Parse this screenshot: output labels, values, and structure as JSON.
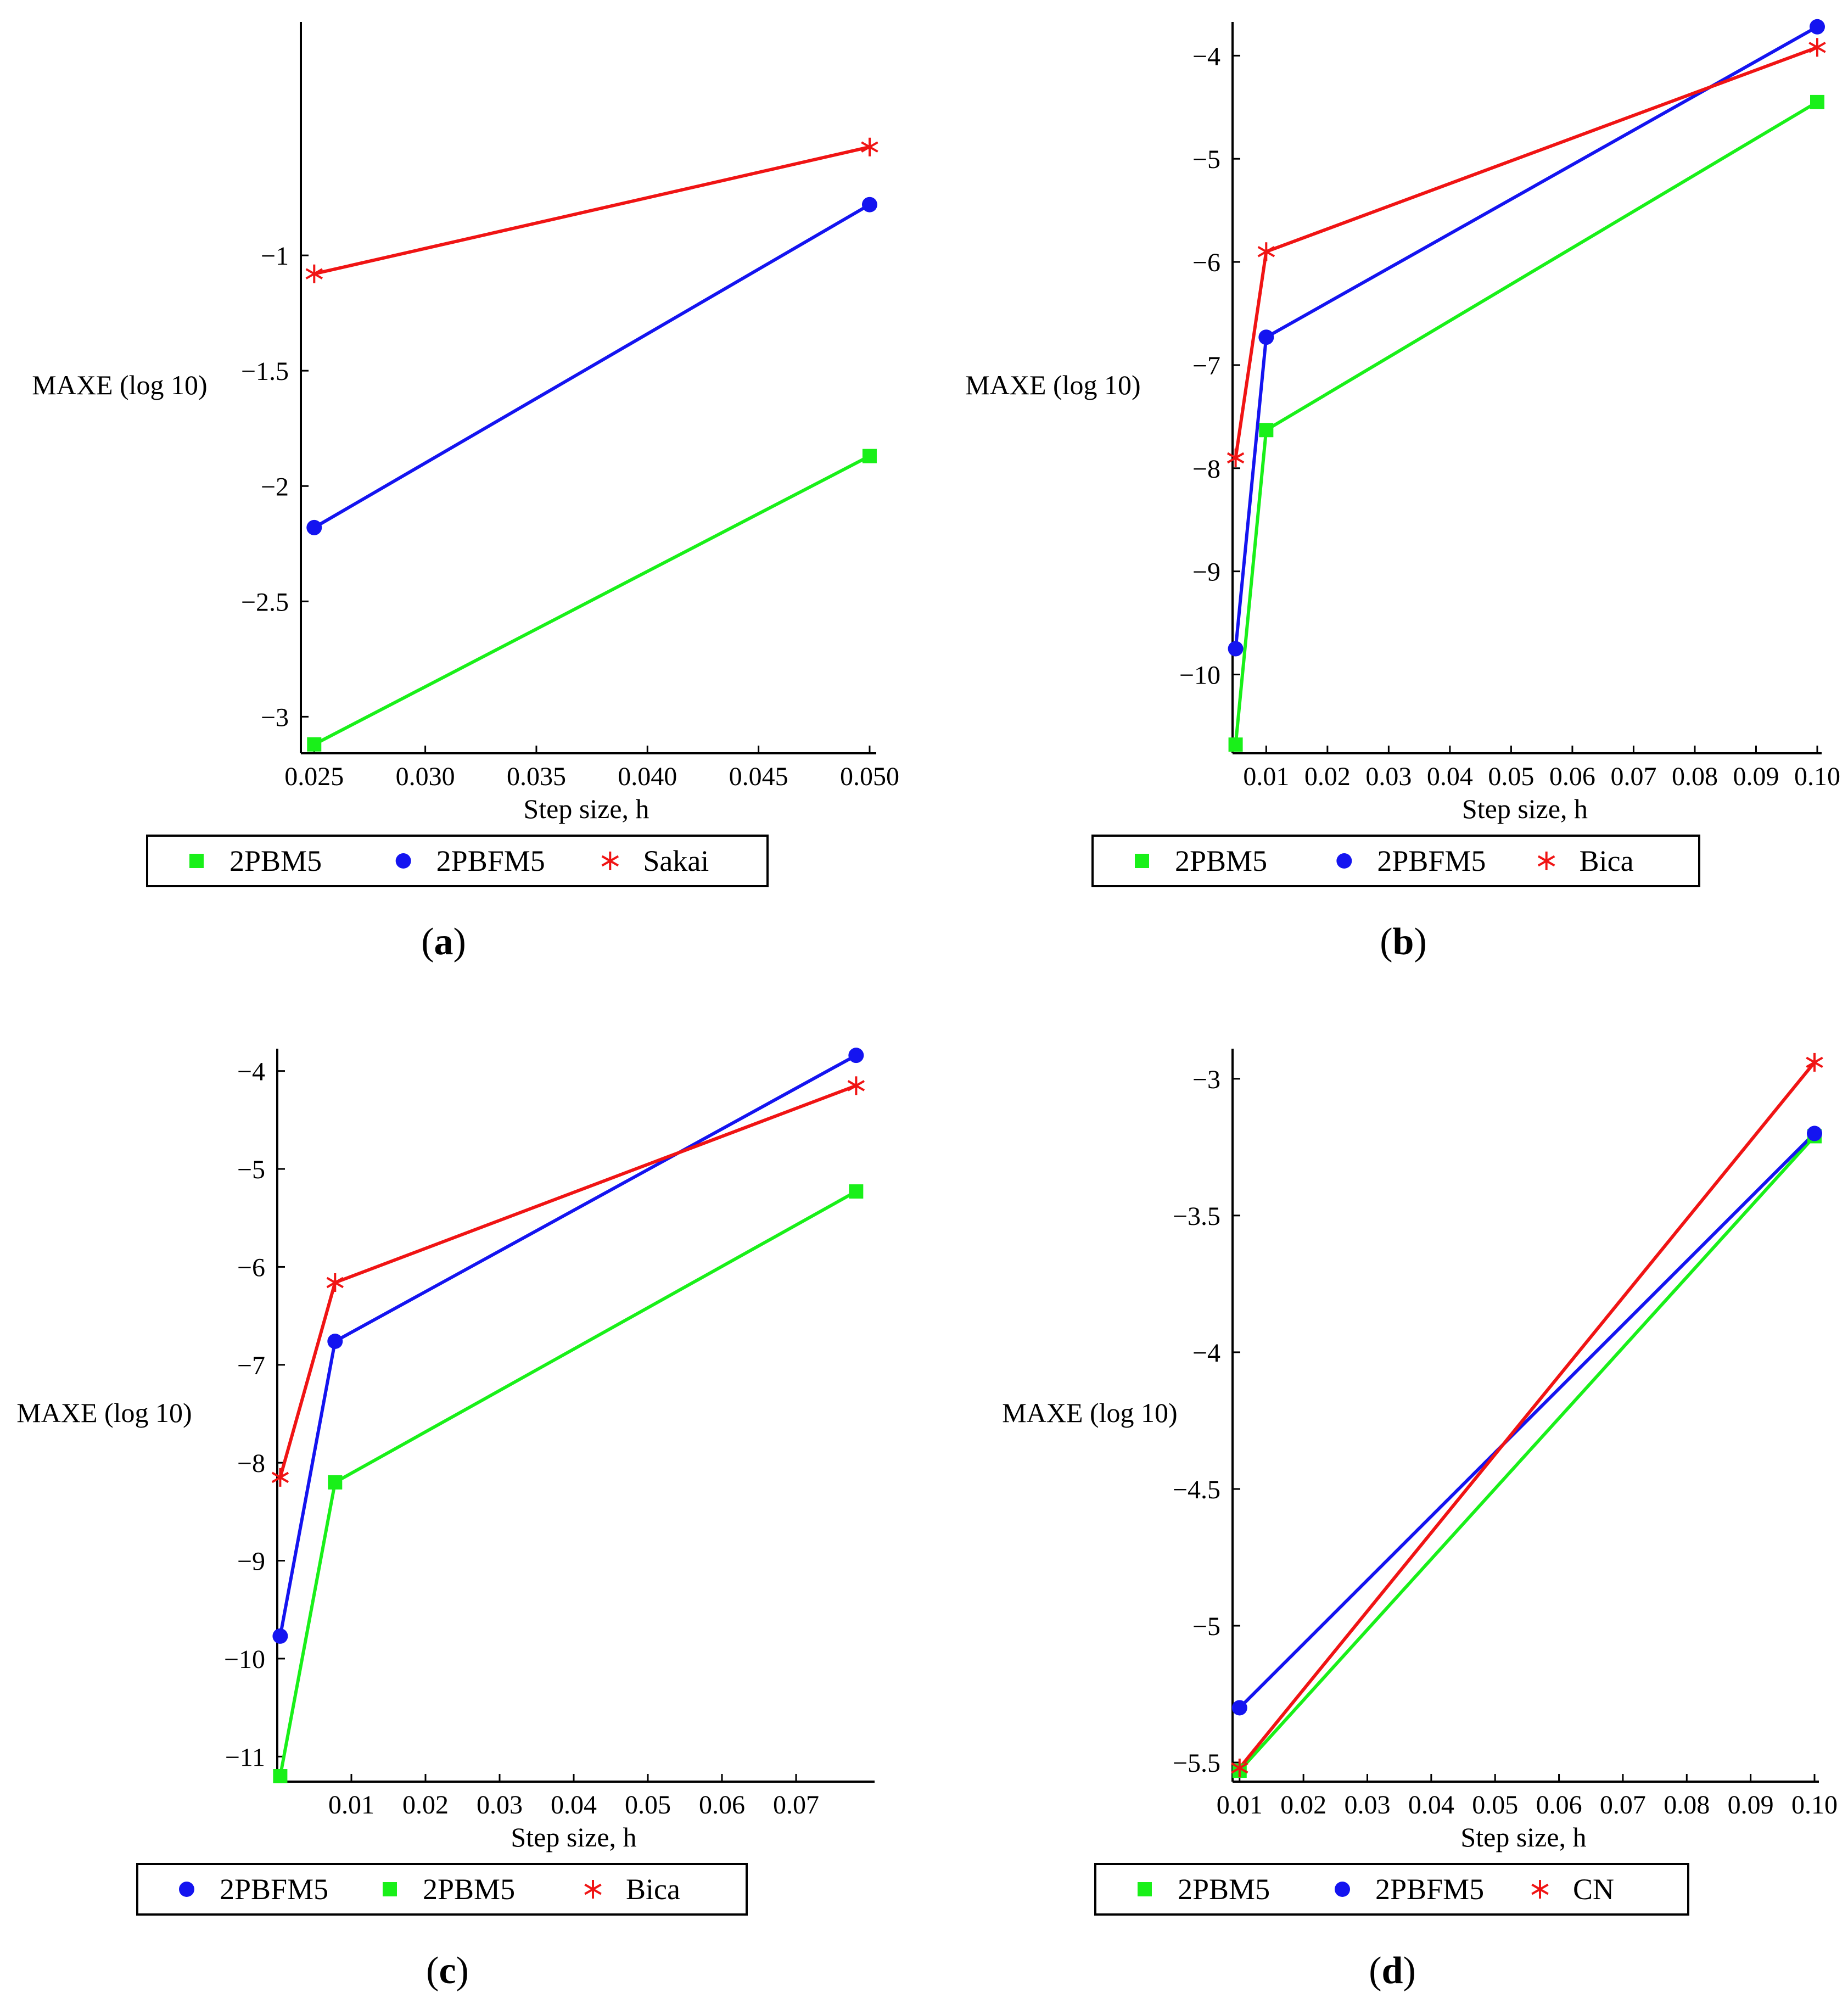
{
  "colors": {
    "green": "#19f019",
    "blue": "#1414f0",
    "red": "#f01414",
    "axis": "#000000"
  },
  "chart_data": [
    {
      "id": "a",
      "type": "line",
      "caption": "(a)",
      "caption_letter": "a",
      "xlabel": "Step size, h",
      "ylabel": "MAXE (log 10)",
      "xlim": [
        0.0244,
        0.0501
      ],
      "ylim": [
        -3.13,
        0.0
      ],
      "xticks": [
        0.025,
        0.03,
        0.035,
        0.04,
        0.045,
        0.05
      ],
      "xtick_labels": [
        "0.025",
        "0.030",
        "0.035",
        "0.040",
        "0.045",
        "0.050"
      ],
      "yticks": [
        -1,
        -1.5,
        -2,
        -2.5,
        -3
      ],
      "ytick_labels": [
        "-1",
        "-1.5",
        "-2",
        "-2.5",
        "-3"
      ],
      "legend": [
        "2PBM5",
        "2PBFM5",
        "Sakai"
      ],
      "series": [
        {
          "name": "2PBM5",
          "marker": "square",
          "color": "green",
          "x": [
            0.025,
            0.05
          ],
          "y": [
            -3.12,
            -1.87
          ]
        },
        {
          "name": "2PBFM5",
          "marker": "circle",
          "color": "blue",
          "x": [
            0.025,
            0.05
          ],
          "y": [
            -2.18,
            -0.78
          ]
        },
        {
          "name": "Sakai",
          "marker": "star",
          "color": "red",
          "x": [
            0.025,
            0.05
          ],
          "y": [
            -1.08,
            -0.53
          ]
        }
      ]
    },
    {
      "id": "b",
      "type": "line",
      "caption": "(b)",
      "caption_letter": "b",
      "xlabel": "Step size, h",
      "ylabel": "MAXE (log 10)",
      "xlim": [
        0.0045,
        0.1
      ],
      "ylim": [
        -10.7,
        -3.7
      ],
      "xticks": [
        0.01,
        0.02,
        0.03,
        0.04,
        0.05,
        0.06,
        0.07,
        0.08,
        0.09,
        0.1
      ],
      "xtick_labels": [
        "0.01",
        "0.02",
        "0.03",
        "0.04",
        "0.05",
        "0.06",
        "0.07",
        "0.08",
        "0.09",
        "0.10"
      ],
      "yticks": [
        -4,
        -5,
        -6,
        -7,
        -8,
        -9,
        -10
      ],
      "ytick_labels": [
        "-4",
        "-5",
        "-6",
        "-7",
        "-8",
        "-9",
        "-10"
      ],
      "legend": [
        "2PBM5",
        "2PBFM5",
        "Bica"
      ],
      "series": [
        {
          "name": "2PBM5",
          "marker": "square",
          "color": "green",
          "x": [
            0.005,
            0.01,
            0.1
          ],
          "y": [
            -10.68,
            -7.63,
            -4.45
          ]
        },
        {
          "name": "2PBFM5",
          "marker": "circle",
          "color": "blue",
          "x": [
            0.005,
            0.01,
            0.1
          ],
          "y": [
            -9.75,
            -6.73,
            -3.72
          ]
        },
        {
          "name": "Bica",
          "marker": "star",
          "color": "red",
          "x": [
            0.005,
            0.01,
            0.1
          ],
          "y": [
            -7.9,
            -5.9,
            -3.92
          ]
        }
      ]
    },
    {
      "id": "c",
      "type": "line",
      "caption": "(c)",
      "caption_letter": "c",
      "xlabel": "Step size, h",
      "ylabel": "MAXE (log 10)",
      "xlim": [
        0.0,
        0.08
      ],
      "ylim": [
        -11.2,
        -3.8
      ],
      "xticks": [
        0.01,
        0.02,
        0.03,
        0.04,
        0.05,
        0.06,
        0.07
      ],
      "xtick_labels": [
        "0.01",
        "0.02",
        "0.03",
        "0.04",
        "0.05",
        "0.06",
        "0.07"
      ],
      "yticks": [
        -4,
        -5,
        -6,
        -7,
        -8,
        -9,
        -10,
        -11
      ],
      "ytick_labels": [
        "-4",
        "-5",
        "-6",
        "-7",
        "-8",
        "-9",
        "-10",
        "-11"
      ],
      "legend": [
        "2PBFM5",
        "2PBM5",
        "Bica"
      ],
      "series": [
        {
          "name": "2PBFM5",
          "marker": "circle",
          "color": "blue",
          "x": [
            0.0004,
            0.0078,
            0.0781
          ],
          "y": [
            -9.77,
            -6.76,
            -3.84
          ]
        },
        {
          "name": "2PBM5",
          "marker": "square",
          "color": "green",
          "x": [
            0.0004,
            0.0078,
            0.0781
          ],
          "y": [
            -11.2,
            -8.2,
            -5.23
          ]
        },
        {
          "name": "Bica",
          "marker": "star",
          "color": "red",
          "x": [
            0.0004,
            0.0078,
            0.0781
          ],
          "y": [
            -8.15,
            -6.16,
            -4.15
          ]
        }
      ]
    },
    {
      "id": "d",
      "type": "line",
      "caption": "(d)",
      "caption_letter": "d",
      "xlabel": "Step size, h",
      "ylabel": "MAXE (log 10)",
      "xlim": [
        0.0089,
        0.1
      ],
      "ylim": [
        -5.55,
        -2.9
      ],
      "xticks": [
        0.01,
        0.02,
        0.03,
        0.04,
        0.05,
        0.06,
        0.07,
        0.08,
        0.09,
        0.1
      ],
      "xtick_labels": [
        "0.01",
        "0.02",
        "0.03",
        "0.04",
        "0.05",
        "0.06",
        "0.07",
        "0.08",
        "0.09",
        "0.10"
      ],
      "yticks": [
        -3,
        -3.5,
        -4,
        -4.5,
        -5,
        -5.5
      ],
      "ytick_labels": [
        "-3",
        "-3.5",
        "-4",
        "-4.5",
        "-5",
        "-5.5"
      ],
      "legend": [
        "2PBM5",
        "2PBFM5",
        "CN"
      ],
      "series": [
        {
          "name": "2PBM5",
          "marker": "square",
          "color": "green",
          "x": [
            0.01,
            0.1
          ],
          "y": [
            -5.53,
            -3.21
          ]
        },
        {
          "name": "2PBFM5",
          "marker": "circle",
          "color": "blue",
          "x": [
            0.01,
            0.1
          ],
          "y": [
            -5.3,
            -3.2
          ]
        },
        {
          "name": "CN",
          "marker": "star",
          "color": "red",
          "x": [
            0.01,
            0.1
          ],
          "y": [
            -5.52,
            -2.94
          ]
        }
      ]
    }
  ]
}
